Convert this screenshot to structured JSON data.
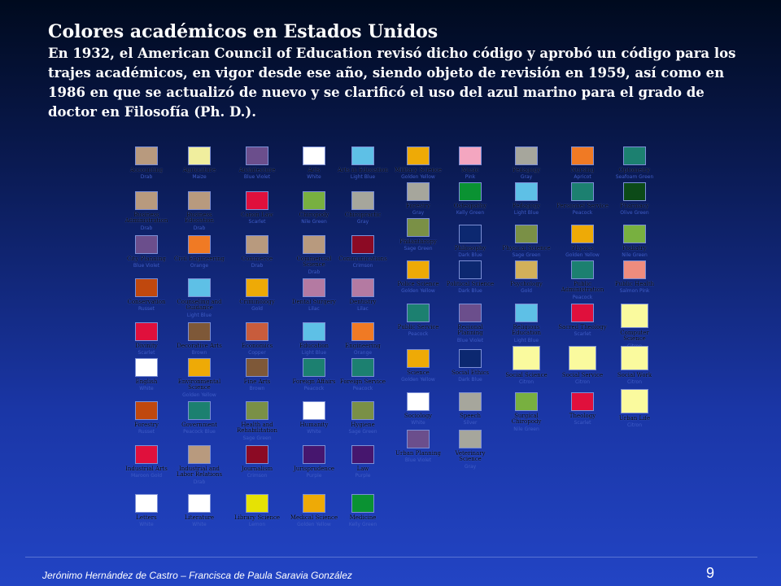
{
  "title": "Colores académicos en Estados Unidos",
  "intro": "En 1932, el American Council of Education revisó dicho código y aprobó un código para los trajes académicos, en vigor desde ese año, siendo objeto de revisión en 1959, así como en 1986 en que se actualizó de nuevo y se clarificó el uso del azul marino para el grado de doctor en Filosofía (Ph. D.).",
  "footer": "Jerónimo Hernández  de Castro – Francisca de Paula Saravia González",
  "page_number": "9",
  "colors": {
    "drab": "#b89a7e",
    "lemon": "#f0ee9e",
    "blue_violet": "#6b4e8c",
    "white": "#ffffff",
    "light_blue": "#5ec0e6",
    "scarlet": "#e0103c",
    "green": "#78b040",
    "gray": "#a6a69c",
    "crimson": "#8c0a24",
    "orange": "#f07a24",
    "rust": "#c0480e",
    "mauve": "#b47aa2",
    "brown": "#7e5838",
    "copper": "#c85c3c",
    "peacock": "#1c8070",
    "olive": "#7a9046",
    "purple": "#46166e",
    "gold": "#eeaa06",
    "citron": "#e6e204",
    "kelly": "#0a9232",
    "pink": "#f4a6c0",
    "dark_blue": "#0c2870",
    "mustard": "#d2b05a",
    "maize": "#fafa9e",
    "dark_green": "#0c4a18",
    "salmon": "#ee8c7e"
  },
  "chart_data": {
    "type": "table",
    "cells": [
      {
        "col": 1,
        "row": 1,
        "name": "Accounting",
        "color": "drab",
        "color_name": "Drab"
      },
      {
        "col": 1,
        "row": 2,
        "name": "Business Administration",
        "color": "drab",
        "color_name": "Drab"
      },
      {
        "col": 1,
        "row": 3,
        "name": "City Planning",
        "color": "blue_violet",
        "color_name": "Blue Violet"
      },
      {
        "col": 1,
        "row": 4,
        "name": "Conservation",
        "color": "rust",
        "color_name": "Russet"
      },
      {
        "col": 1,
        "row": 5,
        "name": "Divinity",
        "color": "scarlet",
        "color_name": "Scarlet"
      },
      {
        "col": 1,
        "row": 6,
        "name": "English",
        "color": "white",
        "color_name": "White"
      },
      {
        "col": 1,
        "row": 7,
        "name": "Forestry",
        "color": "rust",
        "color_name": "Russet"
      },
      {
        "col": 1,
        "row": 8,
        "name": "Industrial Arts",
        "color": "scarlet",
        "color_name": "Maroon Gold"
      },
      {
        "col": 1,
        "row": 9,
        "name": "Letters",
        "color": "white",
        "color_name": "White"
      },
      {
        "col": 2,
        "row": 1,
        "name": "Agriculture",
        "color": "lemon",
        "color_name": "Maize"
      },
      {
        "col": 2,
        "row": 2,
        "name": "Business Education",
        "color": "drab",
        "color_name": "Drab"
      },
      {
        "col": 2,
        "row": 3,
        "name": "Civil Engineering",
        "color": "orange",
        "color_name": "Orange"
      },
      {
        "col": 2,
        "row": 4,
        "name": "Counseling and Guidance",
        "color": "light_blue",
        "color_name": "Light Blue"
      },
      {
        "col": 2,
        "row": 5,
        "name": "Decorative Arts",
        "color": "brown",
        "color_name": "Brown"
      },
      {
        "col": 2,
        "row": 6,
        "name": "Environmental Science",
        "color": "gold",
        "color_name": "Golden Yellow"
      },
      {
        "col": 2,
        "row": 7,
        "name": "Government",
        "color": "peacock",
        "color_name": "Peacock Blue"
      },
      {
        "col": 2,
        "row": 8,
        "name": "Industrial and Labor Relations",
        "color": "drab",
        "color_name": "Drab"
      },
      {
        "col": 2,
        "row": 9,
        "name": "Literature",
        "color": "white",
        "color_name": "White"
      },
      {
        "col": 3,
        "row": 1,
        "name": "Architecture",
        "color": "blue_violet",
        "color_name": "Blue Violet"
      },
      {
        "col": 3,
        "row": 2,
        "name": "Canon Law",
        "color": "scarlet",
        "color_name": "Scarlet"
      },
      {
        "col": 3,
        "row": 3,
        "name": "Commerce",
        "color": "drab",
        "color_name": "Drab"
      },
      {
        "col": 3,
        "row": 4,
        "name": "Criminology",
        "color": "gold",
        "color_name": "Gold"
      },
      {
        "col": 3,
        "row": 5,
        "name": "Economics",
        "color": "copper",
        "color_name": "Copper"
      },
      {
        "col": 3,
        "row": 6,
        "name": "Fine Arts",
        "color": "brown",
        "color_name": "Brown"
      },
      {
        "col": 3,
        "row": 7,
        "name": "Health and Rehabilitation",
        "color": "olive",
        "color_name": "Sage Green"
      },
      {
        "col": 3,
        "row": 8,
        "name": "Journalism",
        "color": "crimson",
        "color_name": "Crimson"
      },
      {
        "col": 3,
        "row": 9,
        "name": "Library Science",
        "color": "citron",
        "color_name": "Lemon"
      },
      {
        "col": 4,
        "row": 1,
        "name": "Arts",
        "color": "white",
        "color_name": "White"
      },
      {
        "col": 4,
        "row": 2,
        "name": "Chiropody",
        "color": "green",
        "color_name": "Nile Green"
      },
      {
        "col": 4,
        "row": 3,
        "name": "Commercial Science",
        "color": "drab",
        "color_name": "Drab"
      },
      {
        "col": 4,
        "row": 4,
        "name": "Dental Surgery",
        "color": "mauve",
        "color_name": "Lilac"
      },
      {
        "col": 4,
        "row": 5,
        "name": "Education",
        "color": "light_blue",
        "color_name": "Light Blue"
      },
      {
        "col": 4,
        "row": 6,
        "name": "Foreign Affairs",
        "color": "peacock",
        "color_name": "Peacock"
      },
      {
        "col": 4,
        "row": 7,
        "name": "Humanity",
        "color": "white",
        "color_name": "White"
      },
      {
        "col": 4,
        "row": 8,
        "name": "Jurisprudence",
        "color": "purple",
        "color_name": "Purple"
      },
      {
        "col": 4,
        "row": 9,
        "name": "Medical Science",
        "color": "gold",
        "color_name": "Golden Yellow"
      },
      {
        "col": 5,
        "row": 1,
        "name": "Arts in Education",
        "color": "light_blue",
        "color_name": "Light Blue"
      },
      {
        "col": 5,
        "row": 2,
        "name": "Chiropractic",
        "color": "gray",
        "color_name": "Gray"
      },
      {
        "col": 5,
        "row": 3,
        "name": "Communications",
        "color": "crimson",
        "color_name": "Crimson"
      },
      {
        "col": 5,
        "row": 4,
        "name": "Dentistry",
        "color": "mauve",
        "color_name": "Lilac"
      },
      {
        "col": 5,
        "row": 5,
        "name": "Engineering",
        "color": "orange",
        "color_name": "Orange"
      },
      {
        "col": 5,
        "row": 6,
        "name": "Foreign Service",
        "color": "peacock",
        "color_name": "Peacock"
      },
      {
        "col": 5,
        "row": 7,
        "name": "Hygiene",
        "color": "olive",
        "color_name": "Sage Green"
      },
      {
        "col": 5,
        "row": 8,
        "name": "Law",
        "color": "purple",
        "color_name": "Purple"
      },
      {
        "col": 5,
        "row": 9,
        "name": "Medicine",
        "color": "kelly",
        "color_name": "Kelly Green"
      },
      {
        "col": 6,
        "row": 1,
        "name": "Military Science",
        "color": "gold",
        "color_name": "Golden Yellow"
      },
      {
        "col": 6,
        "row": 2,
        "name": "Forestry",
        "color": "gray",
        "color_name": "Gray"
      },
      {
        "col": 6,
        "row": 3,
        "name": "Philanthropy",
        "color": "olive",
        "color_name": "Sage Green"
      },
      {
        "col": 6,
        "row": 4,
        "name": "Police Science",
        "color": "gold",
        "color_name": "Golden Yellow"
      },
      {
        "col": 6,
        "row": 5,
        "name": "Public Service",
        "color": "peacock",
        "color_name": "Peacock"
      },
      {
        "col": 6,
        "row": 6,
        "name": "Science",
        "color": "gold",
        "color_name": "Golden Yellow"
      },
      {
        "col": 6,
        "row": 7,
        "name": "Sociology",
        "color": "white",
        "color_name": "White"
      },
      {
        "col": 6,
        "row": 8,
        "name": "Urban Planning",
        "color": "blue_violet",
        "color_name": "Blue Violet"
      },
      {
        "col": 7,
        "row": 1,
        "name": "Music",
        "color": "pink",
        "color_name": "Pink"
      },
      {
        "col": 7,
        "row": 2,
        "name": "Osteopathy",
        "color": "kelly",
        "color_name": "Kelly Green"
      },
      {
        "col": 7,
        "row": 3,
        "name": "Philosophy",
        "color": "dark_blue",
        "color_name": "Dark Blue"
      },
      {
        "col": 7,
        "row": 4,
        "name": "Political Science",
        "color": "dark_blue",
        "color_name": "Dark Blue"
      },
      {
        "col": 7,
        "row": 5,
        "name": "Regional Planning",
        "color": "blue_violet",
        "color_name": "Blue Violet"
      },
      {
        "col": 7,
        "row": 6,
        "name": "Social Ethics",
        "color": "dark_blue",
        "color_name": "Dark Blue"
      },
      {
        "col": 7,
        "row": 7,
        "name": "Speech",
        "color": "gray",
        "color_name": "Silver"
      },
      {
        "col": 7,
        "row": 8,
        "name": "Veterinary Science",
        "color": "gray",
        "color_name": "Gray"
      },
      {
        "col": 8,
        "row": 1,
        "name": "Pedagogy",
        "color": "gray",
        "color_name": "Gray"
      },
      {
        "col": 8,
        "row": 2,
        "name": "Pedagogy",
        "color": "light_blue",
        "color_name": "Light Blue"
      },
      {
        "col": 8,
        "row": 3,
        "name": "Physical Science",
        "color": "olive",
        "color_name": "Sage Green"
      },
      {
        "col": 8,
        "row": 4,
        "name": "Psychology",
        "color": "mustard",
        "color_name": "Gold"
      },
      {
        "col": 8,
        "row": 5,
        "name": "Religious Education",
        "color": "light_blue",
        "color_name": "Light Blue"
      },
      {
        "col": 8,
        "row": 6,
        "name": "Social Science",
        "color": "maize",
        "color_name": "Citron"
      },
      {
        "col": 8,
        "row": 7,
        "name": "Surgical Chiropody",
        "color": "green",
        "color_name": "Nile Green"
      },
      {
        "col": 9,
        "row": 1,
        "name": "Nursing",
        "color": "orange",
        "color_name": "Apricot"
      },
      {
        "col": 9,
        "row": 2,
        "name": "Personnel Service",
        "color": "peacock",
        "color_name": "Peacock"
      },
      {
        "col": 9,
        "row": 3,
        "name": "Physics",
        "color": "gold",
        "color_name": "Golden Yellow"
      },
      {
        "col": 9,
        "row": 4,
        "name": "Public Administration",
        "color": "peacock",
        "color_name": "Peacock"
      },
      {
        "col": 9,
        "row": 5,
        "name": "Sacred Theology",
        "color": "scarlet",
        "color_name": "Scarlet"
      },
      {
        "col": 9,
        "row": 6,
        "name": "Social Service",
        "color": "maize",
        "color_name": "Citron"
      },
      {
        "col": 9,
        "row": 7,
        "name": "Theology",
        "color": "scarlet",
        "color_name": "Scarlet"
      },
      {
        "col": 10,
        "row": 1,
        "name": "Optometry",
        "color": "peacock",
        "color_name": "Seafoam Green"
      },
      {
        "col": 10,
        "row": 2,
        "name": "Pharmacy",
        "color": "dark_green",
        "color_name": "Olive Green"
      },
      {
        "col": 10,
        "row": 3,
        "name": "Podiatry",
        "color": "green",
        "color_name": "Nile Green"
      },
      {
        "col": 10,
        "row": 4,
        "name": "Public Health",
        "color": "salmon",
        "color_name": "Salmon Pink"
      },
      {
        "col": 10,
        "row": 5,
        "name": "Computer Science",
        "color": "maize",
        "color_name": "Citron"
      },
      {
        "col": 10,
        "row": 6,
        "name": "Social Work",
        "color": "maize",
        "color_name": "Citron"
      },
      {
        "col": 10,
        "row": 7,
        "name": "Urban Life",
        "color": "maize",
        "color_name": "Citron"
      }
    ]
  }
}
